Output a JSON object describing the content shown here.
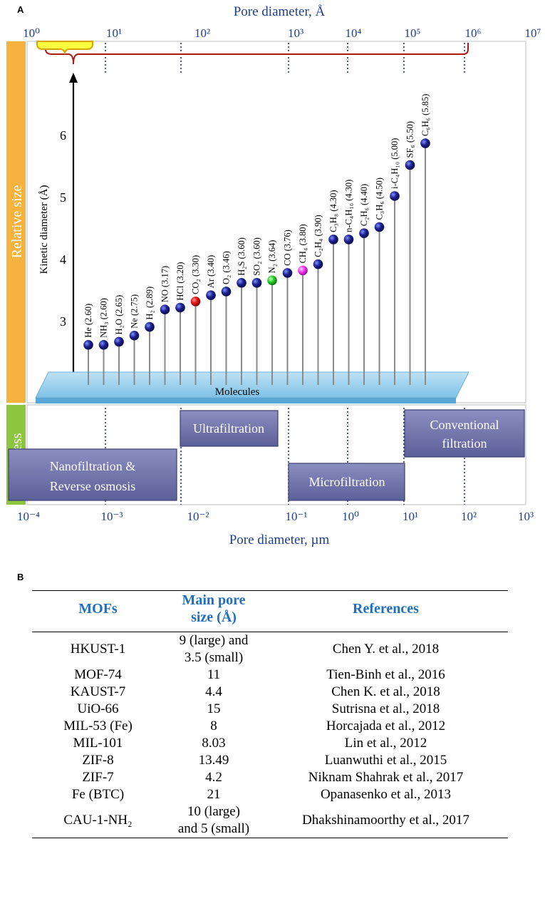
{
  "panel_a_letter": "A",
  "panel_b_letter": "B",
  "chart_data": {
    "type": "scatter",
    "top_axis": {
      "label": "Pore diameter, Å",
      "scale": "log",
      "tick_labels": [
        "10⁰",
        "10¹",
        "10²",
        "10³",
        "10⁴",
        "10⁵",
        "10⁶",
        "10⁷"
      ]
    },
    "bottom_axis": {
      "label": "Pore diameter, µm",
      "scale": "log",
      "tick_labels": [
        "10⁻⁴",
        "10⁻³",
        "10⁻²",
        "10⁻¹",
        "10⁰",
        "10¹",
        "10²",
        "10³"
      ]
    },
    "y_axis": {
      "label": "Kinetic diameter (Å)",
      "range": [
        2,
        6.5
      ],
      "ticks": [
        "2",
        "3",
        "4",
        "5",
        "6"
      ]
    },
    "side_labels": {
      "upper": "Relative size",
      "lower": "Process"
    },
    "base_label": "Molecules",
    "colors": {
      "default": "#1a1f8c",
      "CO2": "#e01010",
      "N2": "#22cc22",
      "CH4": "#ee33ee"
    },
    "series": [
      {
        "name": "He",
        "label": "He (2.60)",
        "value": 2.6,
        "color": "default"
      },
      {
        "name": "NH3",
        "label": "NH₃ (2.60)",
        "value": 2.6,
        "color": "default"
      },
      {
        "name": "H2O",
        "label": "H₂O (2.65)",
        "value": 2.65,
        "color": "default"
      },
      {
        "name": "Ne",
        "label": "Ne (2.75)",
        "value": 2.75,
        "color": "default"
      },
      {
        "name": "H2",
        "label": "H₂ (2.89)",
        "value": 2.89,
        "color": "default"
      },
      {
        "name": "NO",
        "label": "NO (3.17)",
        "value": 3.17,
        "color": "default"
      },
      {
        "name": "HCl",
        "label": "HCl (3.20)",
        "value": 3.2,
        "color": "default"
      },
      {
        "name": "CO2",
        "label": "CO₂ (3.30)",
        "value": 3.3,
        "color": "CO2"
      },
      {
        "name": "Ar",
        "label": "Ar (3.40)",
        "value": 3.4,
        "color": "default"
      },
      {
        "name": "O2",
        "label": "O₂ (3.46)",
        "value": 3.46,
        "color": "default"
      },
      {
        "name": "H2S",
        "label": "H₂S (3.60)",
        "value": 3.6,
        "color": "default"
      },
      {
        "name": "SO2",
        "label": "SO₂ (3.60)",
        "value": 3.6,
        "color": "default"
      },
      {
        "name": "N2",
        "label": "N₂ (3.64)",
        "value": 3.64,
        "color": "N2"
      },
      {
        "name": "CO",
        "label": "CO (3.76)",
        "value": 3.76,
        "color": "default"
      },
      {
        "name": "CH4",
        "label": "CH₄ (3.80)",
        "value": 3.8,
        "color": "CH4"
      },
      {
        "name": "C2H4",
        "label": "C₂H₄ (3.90)",
        "value": 3.9,
        "color": "default"
      },
      {
        "name": "C3H8",
        "label": "C₃H₈ (4.30)",
        "value": 4.3,
        "color": "default"
      },
      {
        "name": "n-C4H10",
        "label": "n-C₄H₁₀ (4.30)",
        "value": 4.3,
        "color": "default"
      },
      {
        "name": "C2H6",
        "label": "C₂H₆ (4.40)",
        "value": 4.4,
        "color": "default"
      },
      {
        "name": "C3H6",
        "label": "C₃H₆ (4.50)",
        "value": 4.5,
        "color": "default"
      },
      {
        "name": "i-C4H10",
        "label": "i-C₄H₁₀ (5.00)",
        "value": 5.0,
        "color": "default"
      },
      {
        "name": "SF6",
        "label": "SF₆ (5.50)",
        "value": 5.5,
        "color": "default"
      },
      {
        "name": "C6H6",
        "label": "C₆H₆ (5.85)",
        "value": 5.85,
        "color": "default"
      }
    ],
    "processes": [
      {
        "name": "nanofiltration",
        "lines": [
          "Nanofiltration &",
          "Reverse osmosis"
        ]
      },
      {
        "name": "ultrafiltration",
        "lines": [
          "Ultrafiltration"
        ]
      },
      {
        "name": "microfiltration",
        "lines": [
          "Microfiltration"
        ]
      },
      {
        "name": "conventional",
        "lines": [
          "Conventional",
          "filtration"
        ]
      }
    ]
  },
  "table": {
    "headers": {
      "mofs": "MOFs",
      "pore_line1": "Main pore",
      "pore_line2": "size (Å)",
      "refs": "References"
    },
    "rows": [
      {
        "mof": "HKUST-1",
        "size1": "9 (large) and",
        "size2": "3.5 (small)",
        "ref": "Chen Y. et al., 2018"
      },
      {
        "mof": "MOF-74",
        "size1": "11",
        "size2": "",
        "ref": "Tien-Binh et al., 2016"
      },
      {
        "mof": "KAUST-7",
        "size1": "4.4",
        "size2": "",
        "ref": "Chen K. et al., 2018"
      },
      {
        "mof": "UiO-66",
        "size1": "15",
        "size2": "",
        "ref": "Sutrisna et al., 2018"
      },
      {
        "mof": "MIL-53 (Fe)",
        "size1": "8",
        "size2": "",
        "ref": "Horcajada et al., 2012"
      },
      {
        "mof": "MIL-101",
        "size1": "8.03",
        "size2": "",
        "ref": "Lin et al., 2012"
      },
      {
        "mof": "ZIF-8",
        "size1": "13.49",
        "size2": "",
        "ref": "Luanwuthi et al., 2015"
      },
      {
        "mof": "ZIF-7",
        "size1": "4.2",
        "size2": "",
        "ref": "Niknam Shahrak  et al., 2017"
      },
      {
        "mof": "Fe (BTC)",
        "size1": "21",
        "size2": "",
        "ref": "Opanasenko  et al., 2013"
      },
      {
        "mof": "CAU-1-NH₂",
        "size1": "10 (large)",
        "size2": "and 5 (small)",
        "ref": "Dhakshinamoorthy  et al., 2017"
      }
    ]
  }
}
